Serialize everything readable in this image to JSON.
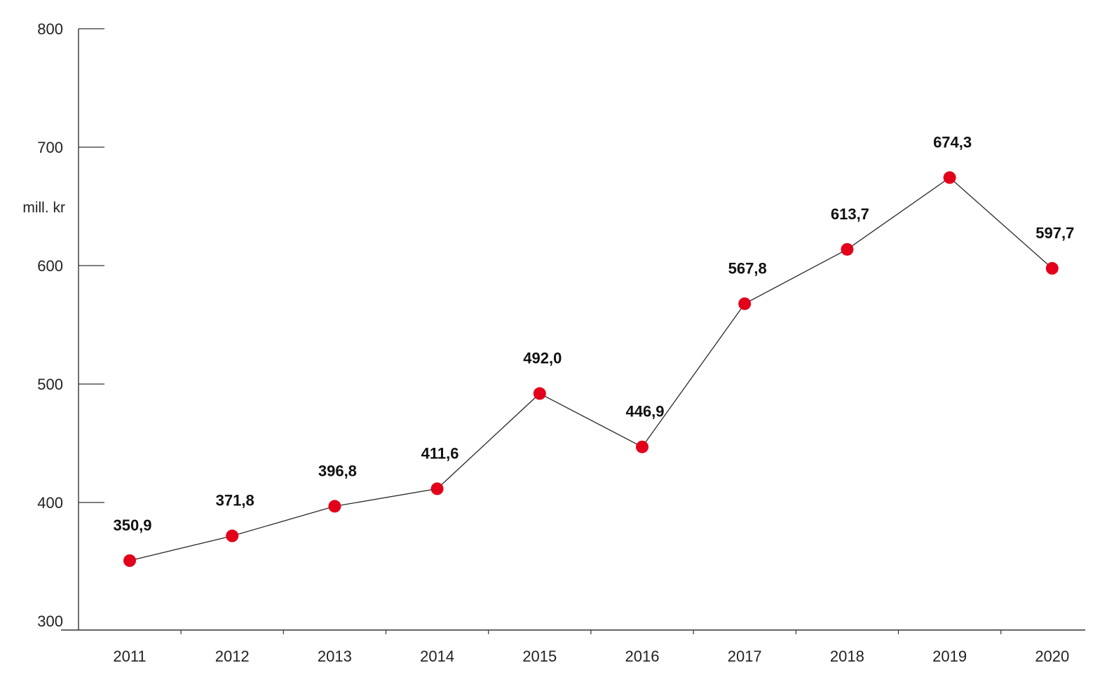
{
  "chart_data": {
    "type": "line",
    "title": "",
    "xlabel": "",
    "ylabel": "mill. kr",
    "ylim": [
      300,
      800
    ],
    "yticks": [
      300,
      400,
      500,
      600,
      700,
      800
    ],
    "ytick_labels": [
      "300",
      "400",
      "500",
      "600",
      "700",
      "800"
    ],
    "categories": [
      "2011",
      "2012",
      "2013",
      "2014",
      "2015",
      "2016",
      "2017",
      "2018",
      "2019",
      "2020"
    ],
    "series": [
      {
        "values": [
          350.9,
          371.8,
          396.8,
          411.6,
          492.0,
          446.9,
          567.8,
          613.7,
          674.3,
          597.7
        ],
        "data_labels": [
          "350,9",
          "371,8",
          "396,8",
          "411,6",
          "492,0",
          "446,9",
          "567,8",
          "613,7",
          "674,3",
          "597,7"
        ],
        "marker_color": "#e2001a",
        "line_color": "#2a2a2a"
      }
    ],
    "grid": false,
    "legend": "none"
  }
}
